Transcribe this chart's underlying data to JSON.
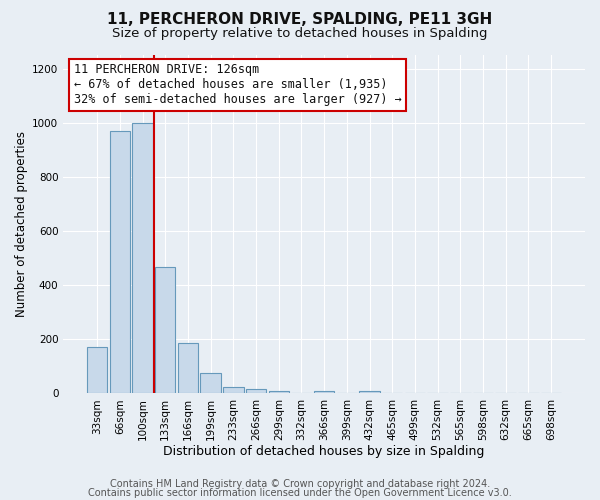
{
  "title": "11, PERCHERON DRIVE, SPALDING, PE11 3GH",
  "subtitle": "Size of property relative to detached houses in Spalding",
  "xlabel": "Distribution of detached houses by size in Spalding",
  "ylabel": "Number of detached properties",
  "bar_labels": [
    "33sqm",
    "66sqm",
    "100sqm",
    "133sqm",
    "166sqm",
    "199sqm",
    "233sqm",
    "266sqm",
    "299sqm",
    "332sqm",
    "366sqm",
    "399sqm",
    "432sqm",
    "465sqm",
    "499sqm",
    "532sqm",
    "565sqm",
    "598sqm",
    "632sqm",
    "665sqm",
    "698sqm"
  ],
  "bar_values": [
    170,
    970,
    1000,
    465,
    185,
    75,
    25,
    15,
    10,
    0,
    8,
    0,
    8,
    0,
    0,
    0,
    0,
    0,
    0,
    0,
    0
  ],
  "bar_color": "#c8d9ea",
  "bar_edgecolor": "#6699bb",
  "vline_x_idx": 2,
  "vline_color": "#cc0000",
  "ylim": [
    0,
    1250
  ],
  "yticks": [
    0,
    200,
    400,
    600,
    800,
    1000,
    1200
  ],
  "annotation_title": "11 PERCHERON DRIVE: 126sqm",
  "annotation_line1": "← 67% of detached houses are smaller (1,935)",
  "annotation_line2": "32% of semi-detached houses are larger (927) →",
  "annotation_box_color": "#ffffff",
  "annotation_box_edgecolor": "#cc0000",
  "footer1": "Contains HM Land Registry data © Crown copyright and database right 2024.",
  "footer2": "Contains public sector information licensed under the Open Government Licence v3.0.",
  "fig_background_color": "#e8eef4",
  "plot_background_color": "#e8eef4",
  "grid_color": "#ffffff",
  "title_fontsize": 11,
  "subtitle_fontsize": 9.5,
  "xlabel_fontsize": 9,
  "ylabel_fontsize": 8.5,
  "tick_fontsize": 7.5,
  "annotation_fontsize": 8.5,
  "footer_fontsize": 7
}
